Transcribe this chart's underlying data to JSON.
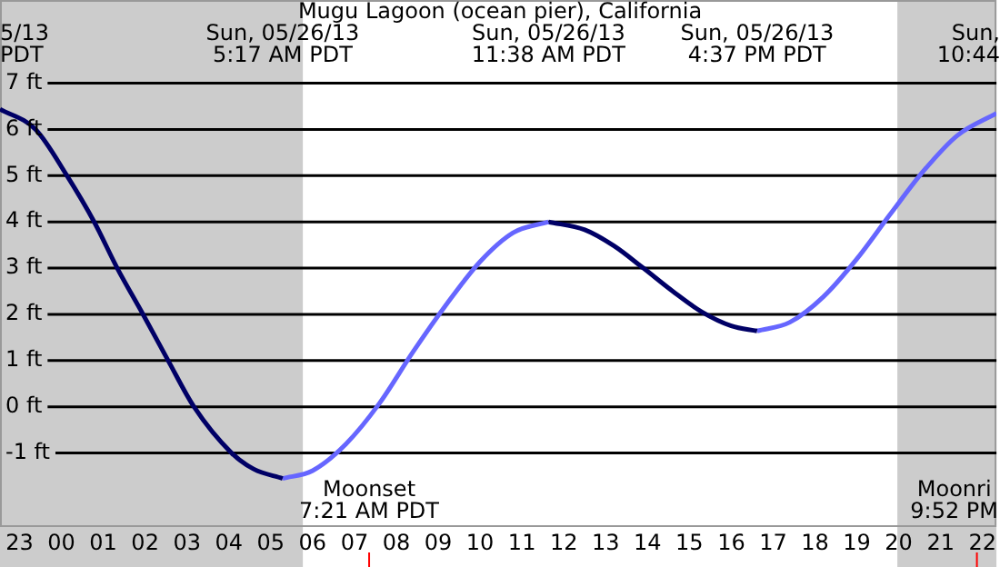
{
  "chart_data": {
    "type": "line",
    "title": "Mugu Lagoon (ocean pier), California",
    "xlim": [
      "--05-25T22:32",
      "--05-26T22:20"
    ],
    "ylim": [
      -2.6,
      8.8
    ],
    "xticks": [
      {
        "value": "--05-25T23:00",
        "label": "23"
      },
      {
        "value": "--05-26T00:00",
        "label": "00"
      },
      {
        "value": "--05-26T01:00",
        "label": "01"
      },
      {
        "value": "--05-26T02:00",
        "label": "02"
      },
      {
        "value": "--05-26T03:00",
        "label": "03"
      },
      {
        "value": "--05-26T04:00",
        "label": "04"
      },
      {
        "value": "--05-26T05:00",
        "label": "05"
      },
      {
        "value": "--05-26T06:00",
        "label": "06"
      },
      {
        "value": "--05-26T07:00",
        "label": "07"
      },
      {
        "value": "--05-26T08:00",
        "label": "08"
      },
      {
        "value": "--05-26T09:00",
        "label": "09"
      },
      {
        "value": "--05-26T10:00",
        "label": "10"
      },
      {
        "value": "--05-26T11:00",
        "label": "11"
      },
      {
        "value": "--05-26T12:00",
        "label": "12"
      },
      {
        "value": "--05-26T13:00",
        "label": "13"
      },
      {
        "value": "--05-26T14:00",
        "label": "14"
      },
      {
        "value": "--05-26T15:00",
        "label": "15"
      },
      {
        "value": "--05-26T16:00",
        "label": "16"
      },
      {
        "value": "--05-26T17:00",
        "label": "17"
      },
      {
        "value": "--05-26T18:00",
        "label": "18"
      },
      {
        "value": "--05-26T19:00",
        "label": "19"
      },
      {
        "value": "--05-26T20:00",
        "label": "20"
      },
      {
        "value": "--05-26T21:00",
        "label": "21"
      },
      {
        "value": "--05-26T22:00",
        "label": "22"
      }
    ],
    "yticks": [
      {
        "value": -1,
        "label": "-1 ft"
      },
      {
        "value": 0,
        "label": "0 ft"
      },
      {
        "value": 1,
        "label": "1 ft"
      },
      {
        "value": 2,
        "label": "2 ft"
      },
      {
        "value": 3,
        "label": "3 ft"
      },
      {
        "value": 4,
        "label": "4 ft"
      },
      {
        "value": 5,
        "label": "5 ft"
      },
      {
        "value": 6,
        "label": "6 ft"
      },
      {
        "value": 7,
        "label": "7 ft"
      }
    ],
    "grid": "y",
    "legend": false,
    "series": [
      {
        "color": "#000066",
        "x": [
          "--05-25T22:32",
          "--05-25T23:23",
          "--05-26T00:08",
          "--05-26T00:47",
          "--05-26T01:20",
          "--05-26T01:57",
          "--05-26T02:33",
          "--05-26T03:10",
          "--05-26T04:04",
          "--05-26T04:36",
          "--05-26T05:17"
        ],
        "values": [
          6.44,
          6.0,
          5,
          4,
          3,
          2,
          1,
          0,
          -1,
          -1.35,
          -1.55
        ]
      },
      {
        "color": "#6666ff",
        "x": [
          "--05-26T05:17",
          "--05-26T06:00",
          "--05-26T06:48",
          "--05-26T07:36",
          "--05-26T08:24",
          "--05-26T09:12",
          "--05-26T10:00",
          "--05-26T10:48",
          "--05-26T11:38"
        ],
        "values": [
          -1.55,
          -1.38,
          -0.8,
          0.08,
          1.19,
          2.22,
          3.14,
          3.77,
          4.0
        ]
      },
      {
        "color": "#000066",
        "x": [
          "--05-26T11:38",
          "--05-26T12:30",
          "--05-26T13:12",
          "--05-26T13:54",
          "--05-26T14:36",
          "--05-26T15:18",
          "--05-26T16:00",
          "--05-26T16:37"
        ],
        "values": [
          4.0,
          3.83,
          3.48,
          3.0,
          2.5,
          2.05,
          1.75,
          1.64
        ]
      },
      {
        "color": "#6666ff",
        "x": [
          "--05-26T16:37",
          "--05-26T17:24",
          "--05-26T18:12",
          "--05-26T19:00",
          "--05-26T19:48",
          "--05-26T20:36",
          "--05-26T21:24",
          "--05-26T22:20"
        ],
        "values": [
          1.64,
          1.83,
          2.38,
          3.2,
          4.17,
          5.11,
          5.87,
          6.35
        ]
      }
    ],
    "bands": [
      {
        "axis": "x",
        "from": "--05-25T22:32",
        "to": "--05-26T05:46",
        "color": "#cccccc"
      },
      {
        "axis": "x",
        "from": "--05-26T19:58",
        "to": "--05-26T22:20",
        "color": "#cccccc"
      }
    ],
    "ref_lines": [
      {
        "axis": "x",
        "value": "--05-26T07:21",
        "label": "Moonset\n7:21 AM PDT",
        "color": "#ff0000"
      },
      {
        "axis": "x",
        "value": "--05-26T21:52",
        "label": "Moonri\n9:52 PM",
        "color": "#ff0000"
      }
    ],
    "annotations": [
      "5/13\nPDT",
      "Sun, 05/26/13\n5:17 AM PDT",
      "Sun, 05/26/13\n11:38 AM PDT",
      "Sun, 05/26/13\n4:37 PM PDT",
      "Sun,\n10:44"
    ]
  }
}
